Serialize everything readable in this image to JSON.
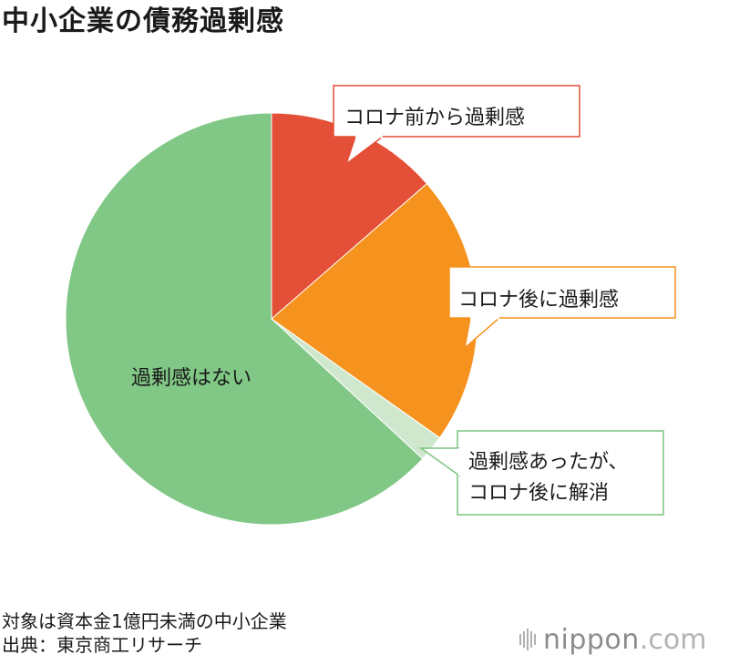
{
  "title": "中小企業の債務過剰感",
  "notes": {
    "target": "対象は資本金1億円未満の中小企業",
    "source": "出典：東京商工リサーチ"
  },
  "brand": {
    "name": "nippon",
    "tld": ".com"
  },
  "chart_data": {
    "type": "pie",
    "slices": [
      {
        "label": "コロナ前から過剰感",
        "value": 13.6,
        "color": "#e44f37",
        "label_lines": [
          "コロナ前から過剰感"
        ],
        "label_style": "callout",
        "border": "#e44f37"
      },
      {
        "label": "コロナ後に過剰感",
        "value": 21.2,
        "color": "#f6921e",
        "label_lines": [
          "コロナ後に過剰感"
        ],
        "label_style": "callout",
        "border": "#f6921e"
      },
      {
        "label": "過剰感あったが、コロナ後に解消",
        "value": 2.1,
        "color": "#cfe8cd",
        "label_lines": [
          "過剰感あったが、",
          "コロナ後に解消"
        ],
        "label_style": "callout",
        "border": "#7cc47f"
      },
      {
        "label": "過剰感はない",
        "value": 63.1,
        "color": "#81c785",
        "label_lines": [
          "過剰感はない"
        ],
        "label_style": "inside"
      }
    ],
    "start": "12 o'clock",
    "direction": "clockwise"
  }
}
